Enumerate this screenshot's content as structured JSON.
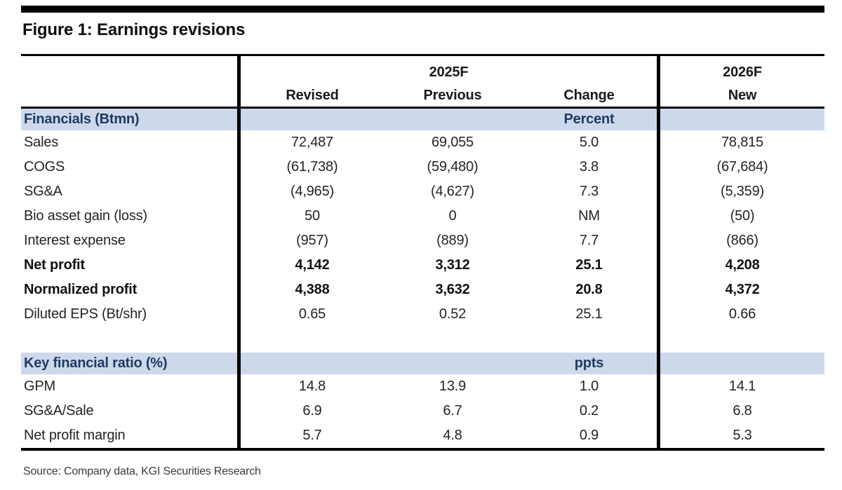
{
  "figure": {
    "title": "Figure 1: Earnings revisions",
    "source": "Source: Company data, KGI Securities Research"
  },
  "table": {
    "year_groups": [
      "2025F",
      "2026F"
    ],
    "columns": [
      "Revised",
      "Previous",
      "Change",
      "New"
    ],
    "sections": [
      {
        "header": {
          "label": "Financials (Btmn)",
          "change_unit": "Percent"
        },
        "rows": [
          {
            "label": "Sales",
            "revised": "72,487",
            "previous": "69,055",
            "change": "5.0",
            "new": "78,815"
          },
          {
            "label": "COGS",
            "revised": "(61,738)",
            "previous": "(59,480)",
            "change": "3.8",
            "new": "(67,684)"
          },
          {
            "label": "SG&A",
            "revised": "(4,965)",
            "previous": "(4,627)",
            "change": "7.3",
            "new": "(5,359)"
          },
          {
            "label": "Bio asset gain (loss)",
            "revised": "50",
            "previous": "0",
            "change": "NM",
            "new": "(50)"
          },
          {
            "label": "Interest expense",
            "revised": "(957)",
            "previous": "(889)",
            "change": "7.7",
            "new": "(866)"
          },
          {
            "label": "Net profit",
            "revised": "4,142",
            "previous": "3,312",
            "change": "25.1",
            "new": "4,208"
          },
          {
            "label": "Normalized profit",
            "revised": "4,388",
            "previous": "3,632",
            "change": "20.8",
            "new": "4,372"
          },
          {
            "label": "Diluted EPS (Bt/shr)",
            "revised": "0.65",
            "previous": "0.52",
            "change": "25.1",
            "new": "0.66"
          }
        ]
      },
      {
        "header": {
          "label": "Key financial ratio (%)",
          "change_unit": "ppts"
        },
        "rows": [
          {
            "label": "GPM",
            "revised": "14.8",
            "previous": "13.9",
            "change": "1.0",
            "new": "14.1"
          },
          {
            "label": "SG&A/Sale",
            "revised": "6.9",
            "previous": "6.7",
            "change": "0.2",
            "new": "6.8"
          },
          {
            "label": "Net profit margin",
            "revised": "5.7",
            "previous": "4.8",
            "change": "0.9",
            "new": "5.3"
          }
        ]
      }
    ]
  },
  "colors": {
    "band_bg": "#cdd9eb",
    "band_text": "#1f3a63",
    "rule": "#000000"
  },
  "chart_data": {
    "type": "table",
    "title": "Figure 1: Earnings revisions",
    "columns": [
      "",
      "2025F Revised",
      "2025F Previous",
      "2025F Change",
      "2026F New"
    ],
    "rows": [
      [
        "Financials (Btmn)",
        "",
        "",
        "Percent",
        ""
      ],
      [
        "Sales",
        "72,487",
        "69,055",
        "5.0",
        "78,815"
      ],
      [
        "COGS",
        "(61,738)",
        "(59,480)",
        "3.8",
        "(67,684)"
      ],
      [
        "SG&A",
        "(4,965)",
        "(4,627)",
        "7.3",
        "(5,359)"
      ],
      [
        "Bio asset gain (loss)",
        "50",
        "0",
        "NM",
        "(50)"
      ],
      [
        "Interest expense",
        "(957)",
        "(889)",
        "7.7",
        "(866)"
      ],
      [
        "Net profit",
        "4,142",
        "3,312",
        "25.1",
        "4,208"
      ],
      [
        "Normalized profit",
        "4,388",
        "3,632",
        "20.8",
        "4,372"
      ],
      [
        "Diluted EPS (Bt/shr)",
        "0.65",
        "0.52",
        "25.1",
        "0.66"
      ],
      [
        "Key financial ratio (%)",
        "",
        "",
        "ppts",
        ""
      ],
      [
        "GPM",
        "14.8",
        "13.9",
        "1.0",
        "14.1"
      ],
      [
        "SG&A/Sale",
        "6.9",
        "6.7",
        "0.2",
        "6.8"
      ],
      [
        "Net profit margin",
        "5.7",
        "4.8",
        "0.9",
        "5.3"
      ]
    ]
  }
}
